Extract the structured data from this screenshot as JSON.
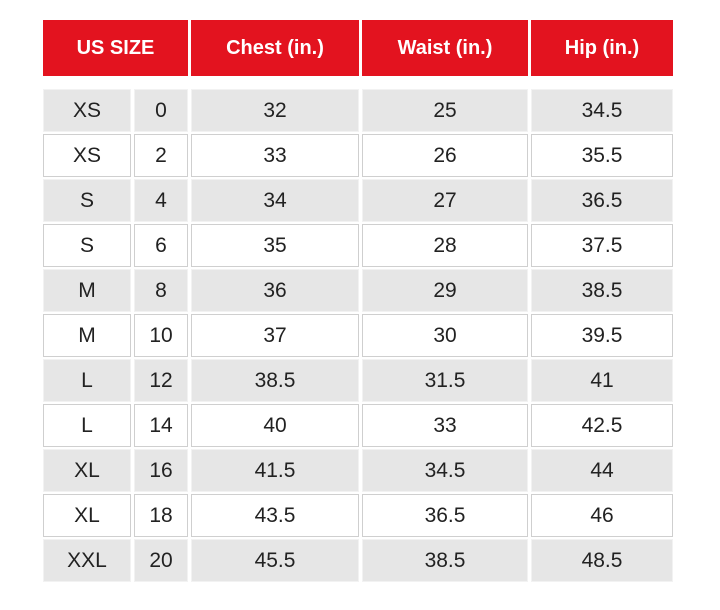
{
  "table": {
    "header": [
      "US SIZE",
      "Chest (in.)",
      "Waist (in.)",
      "Hip (in.)"
    ],
    "rows": [
      [
        "XS",
        "0",
        "32",
        "25",
        "34.5"
      ],
      [
        "XS",
        "2",
        "33",
        "26",
        "35.5"
      ],
      [
        "S",
        "4",
        "34",
        "27",
        "36.5"
      ],
      [
        "S",
        "6",
        "35",
        "28",
        "37.5"
      ],
      [
        "M",
        "8",
        "36",
        "29",
        "38.5"
      ],
      [
        "M",
        "10",
        "37",
        "30",
        "39.5"
      ],
      [
        "L",
        "12",
        "38.5",
        "31.5",
        "41"
      ],
      [
        "L",
        "14",
        "40",
        "33",
        "42.5"
      ],
      [
        "XL",
        "16",
        "41.5",
        "34.5",
        "44"
      ],
      [
        "XL",
        "18",
        "43.5",
        "36.5",
        "46"
      ],
      [
        "XXL",
        "20",
        "45.5",
        "38.5",
        "48.5"
      ]
    ]
  }
}
